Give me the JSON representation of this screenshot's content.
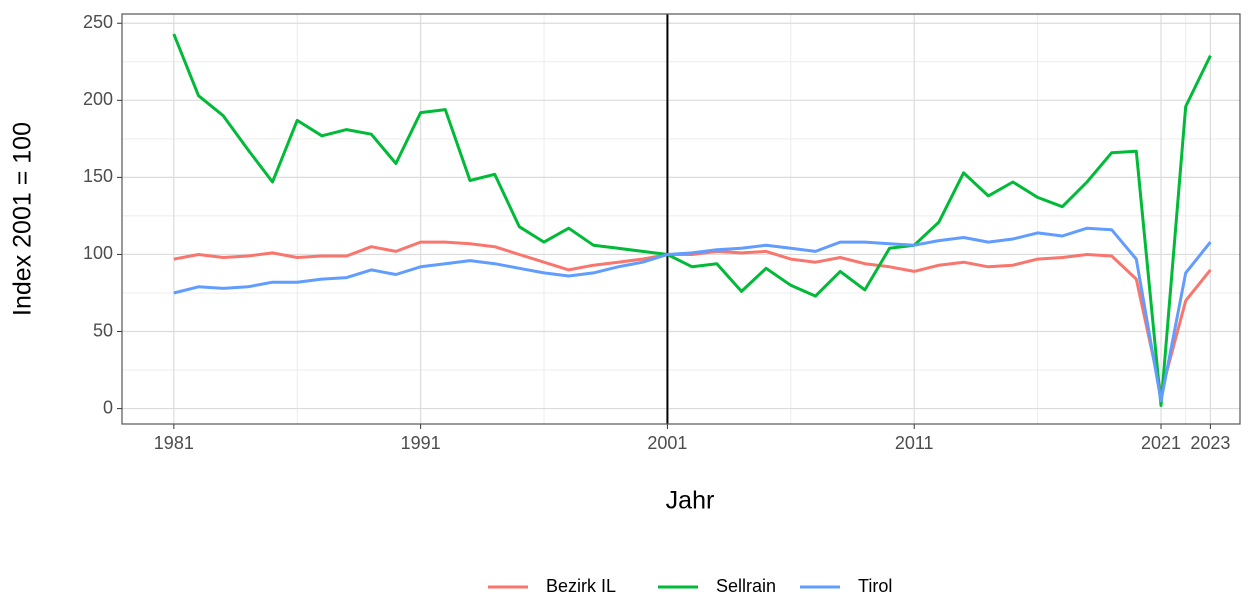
{
  "chart_data": {
    "type": "line",
    "x_label": "Jahr",
    "y_label": "Index 2001 = 100",
    "x": [
      1981,
      1982,
      1983,
      1984,
      1985,
      1986,
      1987,
      1988,
      1989,
      1990,
      1991,
      1992,
      1993,
      1994,
      1995,
      1996,
      1997,
      1998,
      1999,
      2000,
      2001,
      2002,
      2003,
      2004,
      2005,
      2006,
      2007,
      2008,
      2009,
      2010,
      2011,
      2012,
      2013,
      2014,
      2015,
      2016,
      2017,
      2018,
      2019,
      2020,
      2021,
      2022,
      2023
    ],
    "series": [
      {
        "name": "Bezirk IL",
        "color": "#F8766D",
        "values": [
          97,
          100,
          98,
          99,
          101,
          98,
          99,
          99,
          105,
          102,
          108,
          108,
          107,
          105,
          100,
          95,
          90,
          93,
          95,
          97,
          100,
          100,
          102,
          101,
          102,
          97,
          95,
          98,
          94,
          92,
          89,
          93,
          95,
          92,
          93,
          97,
          98,
          100,
          99,
          84,
          10,
          70,
          90
        ]
      },
      {
        "name": "Sellrain",
        "color": "#00BA38",
        "values": [
          243,
          203,
          190,
          168,
          147,
          187,
          177,
          181,
          178,
          159,
          192,
          194,
          148,
          152,
          118,
          108,
          117,
          106,
          104,
          102,
          100,
          92,
          94,
          76,
          91,
          80,
          73,
          89,
          77,
          104,
          106,
          121,
          153,
          138,
          147,
          137,
          131,
          147,
          166,
          167,
          2,
          196,
          229
        ]
      },
      {
        "name": "Tirol",
        "color": "#619CFF",
        "values": [
          75,
          79,
          78,
          79,
          82,
          82,
          84,
          85,
          90,
          87,
          92,
          94,
          96,
          94,
          91,
          88,
          86,
          88,
          92,
          95,
          100,
          101,
          103,
          104,
          106,
          104,
          102,
          108,
          108,
          107,
          106,
          109,
          111,
          108,
          110,
          114,
          112,
          117,
          116,
          97,
          5,
          88,
          108
        ]
      }
    ],
    "xlim": [
      1978.9,
      2024.2
    ],
    "xticks": [
      1981,
      1991,
      2001,
      2011,
      2021,
      2023
    ],
    "ylim": [
      -10,
      256
    ],
    "yticks": [
      0,
      50,
      100,
      150,
      200,
      250
    ],
    "vline": 2001,
    "grid": true,
    "legend": "bottom"
  }
}
